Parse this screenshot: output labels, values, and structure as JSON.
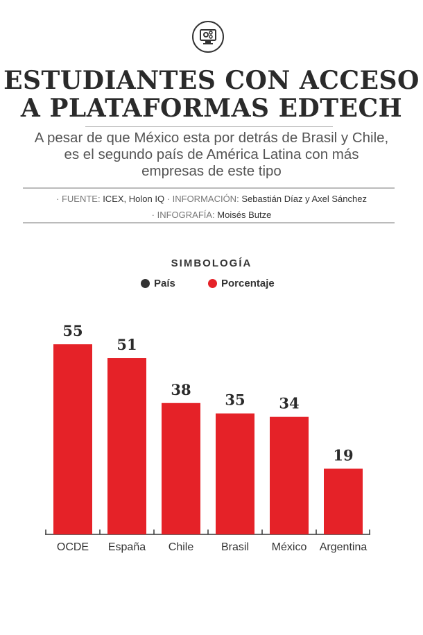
{
  "header": {
    "icon": "monitor-gears-icon",
    "title_line1": "ESTUDIANTES CON ACCESO",
    "title_line2": "A PLATAFORMAS EDTECH",
    "subtitle_line1": "A pesar de que México esta por detrás de Brasil y Chile,",
    "subtitle_line2": "es el segundo país de América Latina con más",
    "subtitle_line3": "empresas de este tipo"
  },
  "credits": {
    "source_label": "· FUENTE:",
    "source": "ICEX, Holon IQ",
    "info_label": "· INFORMACIÓN:",
    "info": "Sebastián Díaz y Axel Sánchez",
    "graphic_label": "· INFOGRAFÍA:",
    "graphic": "Moisés Butze"
  },
  "legend": {
    "title": "SIMBOLOGÍA",
    "items": [
      {
        "label": "País",
        "color": "#333333"
      },
      {
        "label": "Porcentaje",
        "color": "#e52228"
      }
    ]
  },
  "chart_data": {
    "type": "bar",
    "title": "ESTUDIANTES CON ACCESO A PLATAFORMAS EDTECH",
    "categories": [
      "OCDE",
      "España",
      "Chile",
      "Brasil",
      "México",
      "Argentina"
    ],
    "values": [
      55,
      51,
      38,
      35,
      34,
      19
    ],
    "value_labels": [
      "55",
      "51",
      "38",
      "35",
      "34",
      "19"
    ],
    "xlabel": "",
    "ylabel": "Porcentaje",
    "ylim": [
      0,
      60
    ],
    "grid": false,
    "bar_color": "#e52228"
  }
}
